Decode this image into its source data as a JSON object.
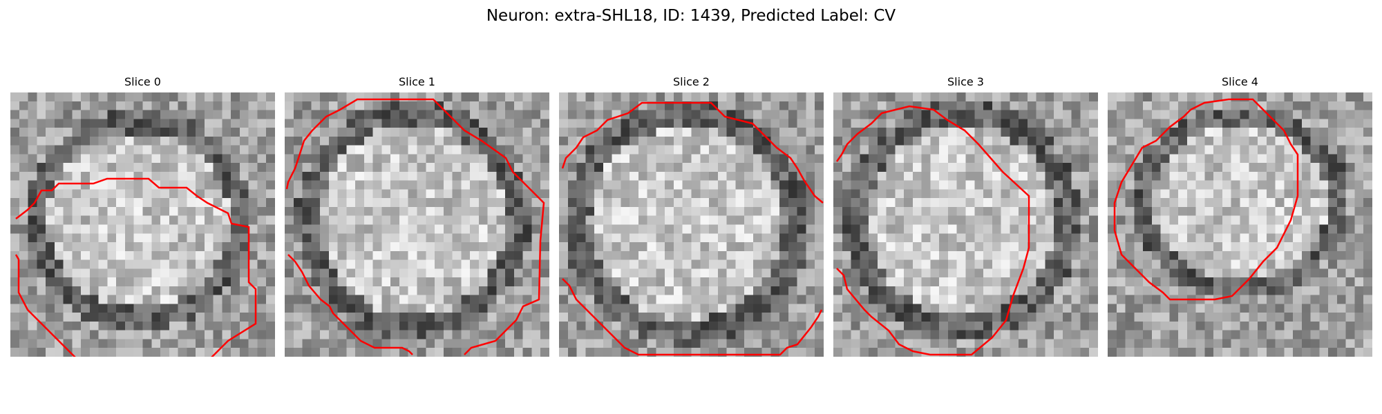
{
  "figure": {
    "title": "Neuron: extra-SHL18, ID: 1439, Predicted Label: CV"
  },
  "colors": {
    "contour": "#ff0000",
    "background": "#ffffff",
    "image_colormap": "grayscale"
  },
  "panels": [
    {
      "title": "Slice 0"
    },
    {
      "title": "Slice 1"
    },
    {
      "title": "Slice 2"
    },
    {
      "title": "Slice 3"
    },
    {
      "title": "Slice 4"
    }
  ]
}
